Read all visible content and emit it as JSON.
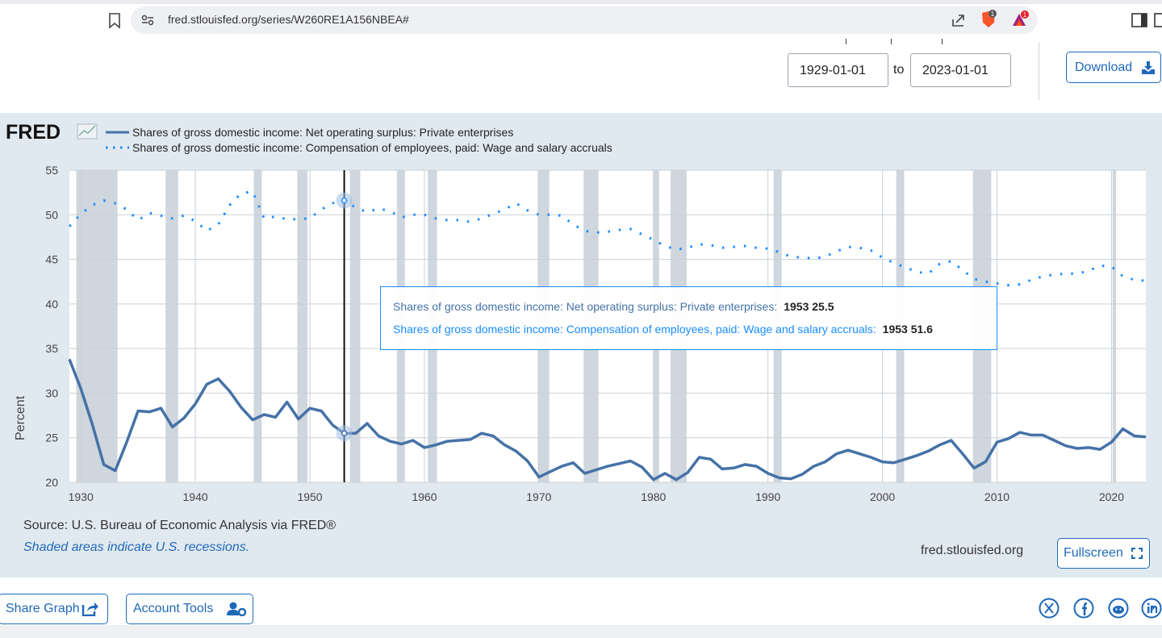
{
  "browser": {
    "url": "fred.stlouisfed.org/series/W260RE1A156NBEA#",
    "brave_badge": "1",
    "rewards_badge": "1"
  },
  "controls": {
    "start_date": "1929-01-01",
    "to_label": "to",
    "end_date": "2023-01-01",
    "download_label": "Download"
  },
  "chart": {
    "logo_text": "FRED",
    "source": "Source: U.S. Bureau of Economic Analysis via FRED®",
    "recession_note": "Shaded areas indicate U.S. recessions.",
    "site": "fred.stlouisfed.org",
    "fullscreen_label": "Fullscreen"
  },
  "tooltip": {
    "line1_label": "Shares of gross domestic income: Net operating surplus: Private enterprises:",
    "line1_value": "1953 25.5",
    "line2_label": "Shares of gross domestic income: Compensation of employees, paid: Wage and salary accruals:",
    "line2_value": "1953 51.6"
  },
  "footer": {
    "share_graph_label": "Share Graph",
    "account_tools_label": "Account Tools"
  },
  "colors": {
    "series_solid": "#4572a7",
    "series_dotted": "#1a8cff",
    "recession": "#cfd6dd",
    "link_blue": "#1f69b9"
  },
  "icons": [
    "bookmark-icon",
    "site-settings-icon",
    "share-icon",
    "brave-shield-icon",
    "brave-rewards-icon",
    "sidebar-toggle-icon",
    "download-icon",
    "fullscreen-icon",
    "share-icon",
    "account-tools-icon",
    "x-twitter-icon",
    "facebook-icon",
    "reddit-icon",
    "linkedin-icon"
  ],
  "chart_data": {
    "type": "line",
    "ylabel": "Percent",
    "xlim": [
      1929,
      2023
    ],
    "ylim": [
      20,
      55
    ],
    "yticks": [
      20,
      25,
      30,
      35,
      40,
      45,
      50,
      55
    ],
    "xticks": [
      1930,
      1940,
      1950,
      1960,
      1970,
      1980,
      1990,
      2000,
      2010,
      2020
    ],
    "grid": true,
    "legend_position": "top-left",
    "x": [
      1929,
      1930,
      1931,
      1932,
      1933,
      1934,
      1935,
      1936,
      1937,
      1938,
      1939,
      1940,
      1941,
      1942,
      1943,
      1944,
      1945,
      1946,
      1947,
      1948,
      1949,
      1950,
      1951,
      1952,
      1953,
      1954,
      1955,
      1956,
      1957,
      1958,
      1959,
      1960,
      1961,
      1962,
      1963,
      1964,
      1965,
      1966,
      1967,
      1968,
      1969,
      1970,
      1971,
      1972,
      1973,
      1974,
      1975,
      1976,
      1977,
      1978,
      1979,
      1980,
      1981,
      1982,
      1983,
      1984,
      1985,
      1986,
      1987,
      1988,
      1989,
      1990,
      1991,
      1992,
      1993,
      1994,
      1995,
      1996,
      1997,
      1998,
      1999,
      2000,
      2001,
      2002,
      2003,
      2004,
      2005,
      2006,
      2007,
      2008,
      2009,
      2010,
      2011,
      2012,
      2013,
      2014,
      2015,
      2016,
      2017,
      2018,
      2019,
      2020,
      2021,
      2022,
      2023
    ],
    "series": [
      {
        "name": "Shares of gross domestic income: Net operating surplus: Private enterprises",
        "style": "solid",
        "values": [
          33.8,
          30.5,
          26.5,
          22.0,
          21.3,
          24.5,
          28.0,
          27.9,
          28.3,
          26.2,
          27.2,
          28.8,
          31.0,
          31.6,
          30.2,
          28.4,
          27.0,
          27.6,
          27.3,
          29.0,
          27.1,
          28.3,
          28.0,
          26.4,
          25.5,
          25.5,
          26.6,
          25.2,
          24.6,
          24.3,
          24.7,
          23.9,
          24.2,
          24.6,
          24.7,
          24.8,
          25.5,
          25.2,
          24.2,
          23.5,
          22.4,
          20.6,
          21.2,
          21.8,
          22.2,
          21.0,
          21.4,
          21.8,
          22.1,
          22.4,
          21.7,
          20.3,
          21.0,
          20.3,
          21.1,
          22.8,
          22.6,
          21.5,
          21.6,
          22.0,
          21.8,
          21.0,
          20.5,
          20.4,
          20.9,
          21.8,
          22.3,
          23.2,
          23.6,
          23.2,
          22.8,
          22.3,
          22.2,
          22.6,
          23.0,
          23.5,
          24.2,
          24.7,
          23.2,
          21.6,
          22.3,
          24.5,
          24.9,
          25.6,
          25.3,
          25.3,
          24.7,
          24.1,
          23.8,
          23.9,
          23.7,
          24.5,
          26.0,
          25.2,
          25.1
        ]
      },
      {
        "name": "Shares of gross domestic income: Compensation of employees, paid: Wage and salary accruals",
        "style": "dotted",
        "values": [
          48.7,
          50.1,
          51.1,
          51.6,
          51.3,
          50.6,
          49.4,
          50.2,
          49.9,
          49.6,
          49.9,
          49.3,
          48.2,
          48.9,
          51.1,
          52.4,
          52.6,
          49.6,
          49.8,
          49.5,
          49.5,
          49.6,
          50.6,
          51.3,
          51.6,
          50.8,
          50.3,
          50.7,
          50.4,
          49.7,
          50.0,
          50.0,
          49.6,
          49.4,
          49.4,
          49.2,
          49.6,
          50.1,
          50.6,
          51.3,
          50.5,
          50.0,
          50.0,
          49.9,
          48.9,
          48.2,
          48.0,
          48.1,
          48.3,
          48.4,
          47.8,
          47.2,
          46.5,
          46.1,
          46.3,
          46.7,
          46.6,
          46.3,
          46.4,
          46.5,
          46.3,
          46.2,
          45.8,
          45.3,
          45.2,
          45.1,
          45.3,
          45.9,
          46.4,
          46.3,
          46.0,
          45.2,
          44.6,
          44.1,
          43.6,
          43.4,
          44.5,
          44.8,
          43.8,
          42.8,
          42.5,
          42.3,
          42.1,
          42.2,
          42.7,
          43.1,
          43.3,
          43.4,
          43.4,
          43.7,
          44.3,
          44.2,
          43.1,
          42.7,
          42.6
        ]
      }
    ],
    "recessions": [
      [
        1929.6,
        1933.2
      ],
      [
        1937.4,
        1938.5
      ],
      [
        1945.1,
        1945.8
      ],
      [
        1948.9,
        1949.8
      ],
      [
        1953.5,
        1954.4
      ],
      [
        1957.6,
        1958.3
      ],
      [
        1960.3,
        1961.1
      ],
      [
        1969.9,
        1970.9
      ],
      [
        1973.9,
        1975.2
      ],
      [
        1980.0,
        1980.5
      ],
      [
        1981.5,
        1982.9
      ],
      [
        1990.5,
        1991.2
      ],
      [
        2001.2,
        2001.9
      ],
      [
        2007.9,
        2009.5
      ],
      [
        2020.1,
        2020.4
      ]
    ],
    "highlight_x": 1953
  }
}
